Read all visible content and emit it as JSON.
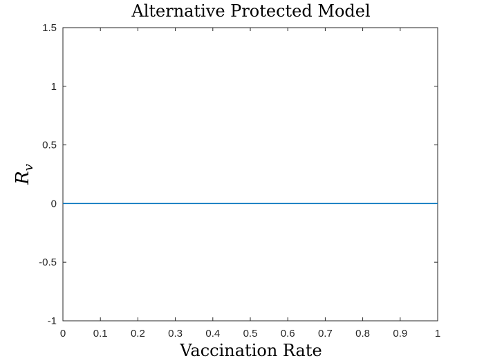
{
  "chart_data": {
    "type": "line",
    "title": "Alternative Protected Model",
    "xlabel": "Vaccination Rate",
    "ylabel": {
      "main": "R",
      "sub": "v"
    },
    "xlim": [
      0,
      1
    ],
    "ylim": [
      -1,
      1.5
    ],
    "x_ticks": [
      0,
      0.1,
      0.2,
      0.3,
      0.4,
      0.5,
      0.6,
      0.7,
      0.8,
      0.9,
      1
    ],
    "x_tick_labels": [
      "0",
      "0.1",
      "0.2",
      "0.3",
      "0.4",
      "0.5",
      "0.6",
      "0.7",
      "0.8",
      "0.9",
      "1"
    ],
    "y_ticks": [
      -1,
      -0.5,
      0,
      0.5,
      1,
      1.5
    ],
    "y_tick_labels": [
      "-1",
      "-0.5",
      "0",
      "0.5",
      "1",
      "1.5"
    ],
    "grid": false,
    "legend": "none",
    "series": [
      {
        "color": "#0072BD",
        "x": [
          0,
          0.1,
          0.2,
          0.3,
          0.4,
          0.5,
          0.6,
          0.7,
          0.8,
          0.9,
          1
        ],
        "y": [
          0,
          0,
          0,
          0,
          0,
          0,
          0,
          0,
          0,
          0,
          0
        ]
      }
    ]
  }
}
